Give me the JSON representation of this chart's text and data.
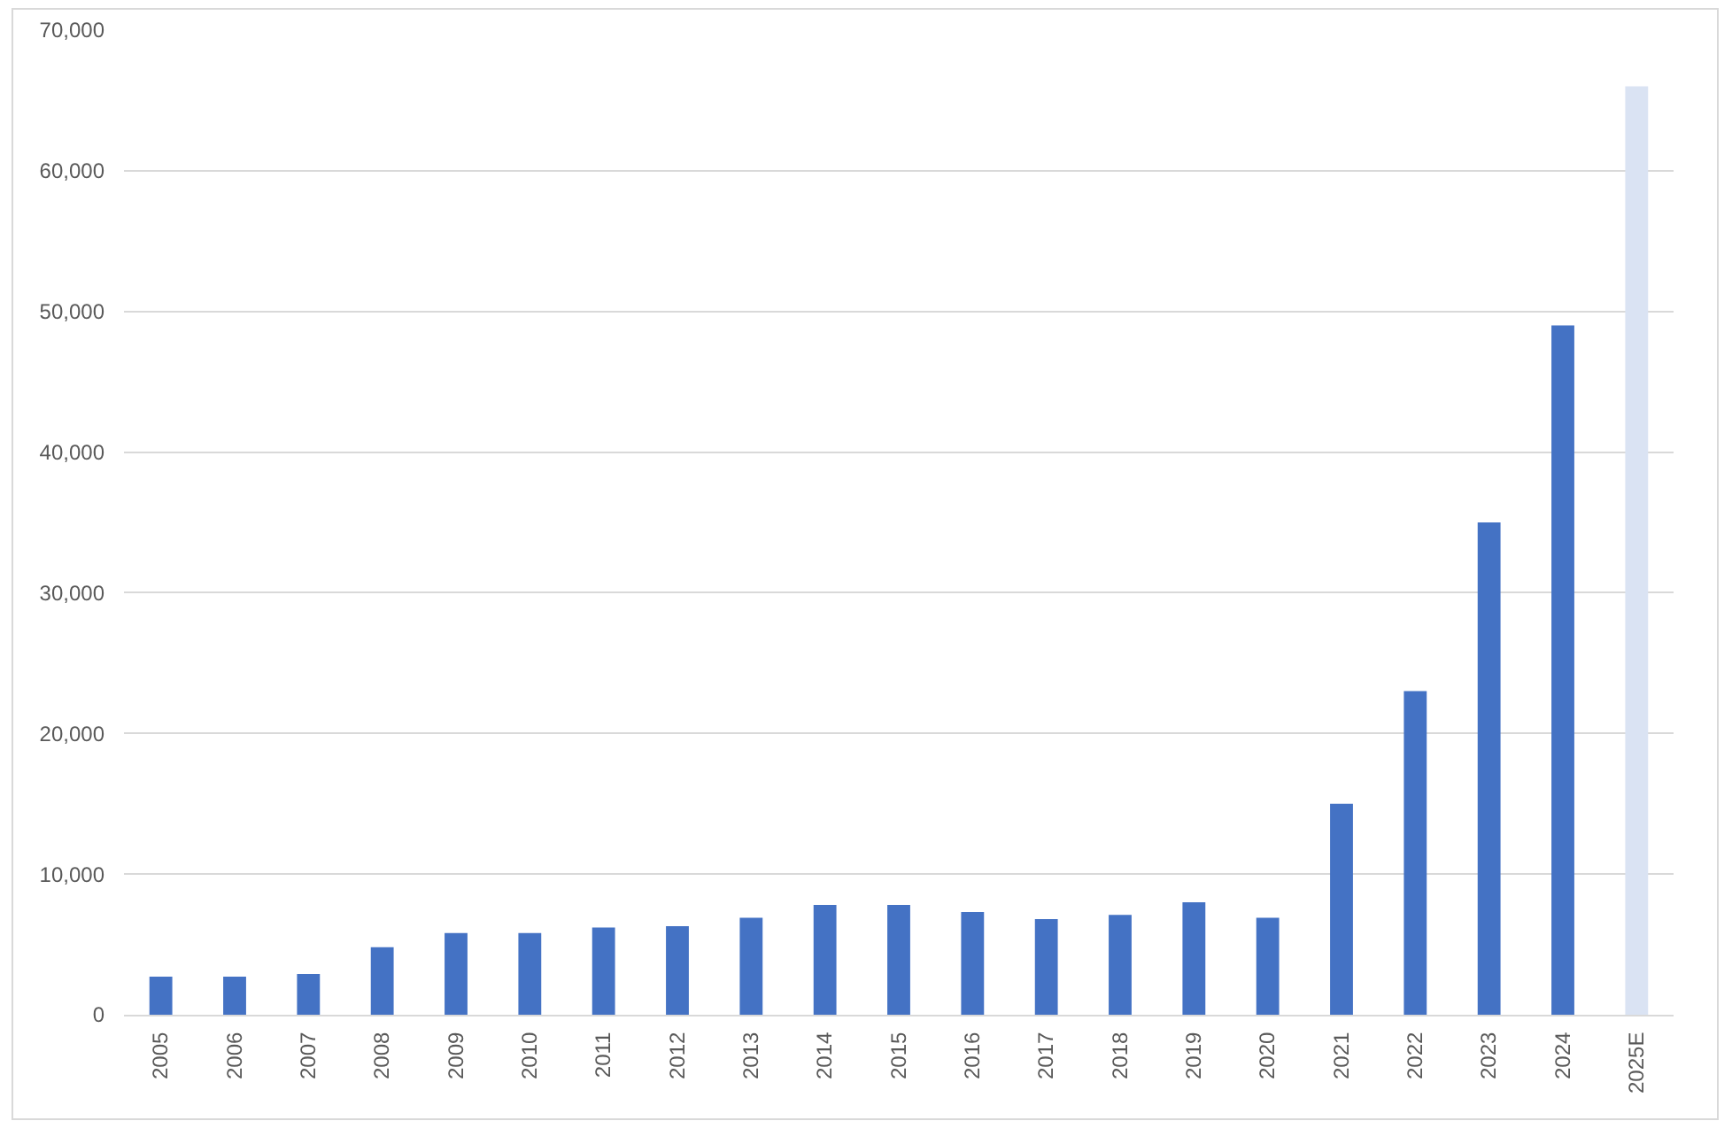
{
  "chart_data": {
    "type": "bar",
    "categories": [
      "2005",
      "2006",
      "2007",
      "2008",
      "2009",
      "2010",
      "2011",
      "2012",
      "2013",
      "2014",
      "2015",
      "2016",
      "2017",
      "2018",
      "2019",
      "2020",
      "2021",
      "2022",
      "2023",
      "2024",
      "2025E"
    ],
    "values": [
      2700,
      2700,
      2900,
      4800,
      5800,
      5800,
      6200,
      6300,
      6900,
      7800,
      7800,
      7300,
      6800,
      7100,
      8000,
      6900,
      15000,
      23000,
      35000,
      49000,
      66000
    ],
    "colors": [
      "#4472c4",
      "#4472c4",
      "#4472c4",
      "#4472c4",
      "#4472c4",
      "#4472c4",
      "#4472c4",
      "#4472c4",
      "#4472c4",
      "#4472c4",
      "#4472c4",
      "#4472c4",
      "#4472c4",
      "#4472c4",
      "#4472c4",
      "#4472c4",
      "#4472c4",
      "#4472c4",
      "#4472c4",
      "#4472c4",
      "#dae3f3"
    ],
    "ylim": [
      0,
      70000
    ],
    "yticks": [
      0,
      {
        "value": 10000,
        "label": "10,000"
      },
      {
        "value": 20000,
        "label": "20,000"
      },
      {
        "value": 30000,
        "label": "30,000"
      },
      {
        "value": 40000,
        "label": "40,000"
      },
      {
        "value": 50000,
        "label": "50,000"
      },
      {
        "value": 60000,
        "label": "60,000"
      },
      {
        "value": 70000,
        "label": "70,000"
      }
    ],
    "grid": "y"
  }
}
